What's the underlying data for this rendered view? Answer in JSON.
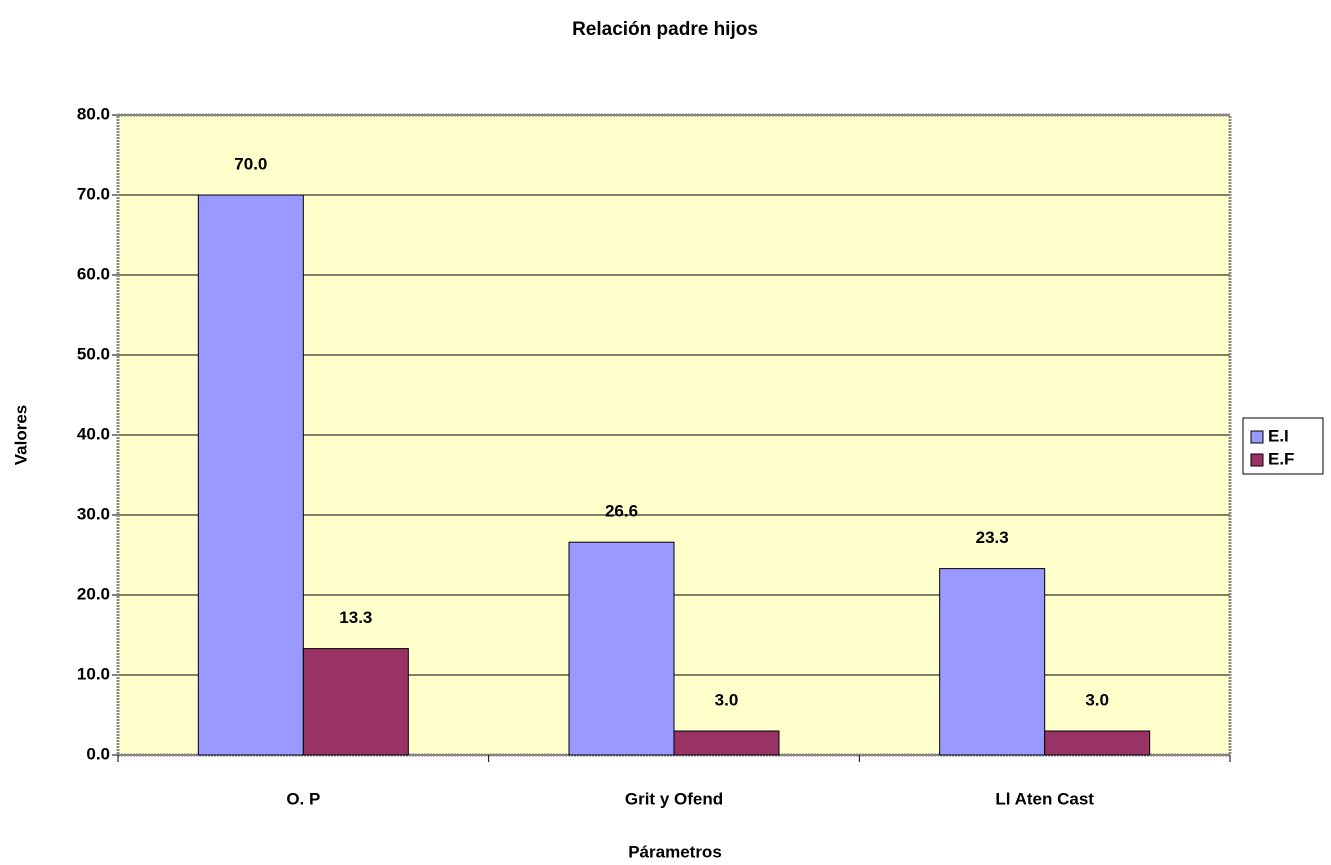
{
  "chart_data": {
    "type": "bar",
    "title": "Relación padre hijos",
    "x_label": "Párametros",
    "y_label": "Valores",
    "categories": [
      "O. P",
      "Grit y Ofend",
      "Ll Aten Cast"
    ],
    "series": [
      {
        "name": "E.I",
        "color": "#9999ff",
        "values": [
          70.0,
          26.6,
          23.3
        ],
        "value_labels": [
          "70.0",
          "26.6",
          "23.3"
        ]
      },
      {
        "name": "E.F",
        "color": "#993366",
        "values": [
          13.3,
          3.0,
          3.0
        ],
        "value_labels": [
          "13.3",
          "3.0",
          "3.0"
        ]
      }
    ],
    "ylim": [
      0,
      80
    ],
    "yticks": [
      {
        "value": 0,
        "label": "0.0"
      },
      {
        "value": 10,
        "label": "10.0"
      },
      {
        "value": 20,
        "label": "20.0"
      },
      {
        "value": 30,
        "label": "30.0"
      },
      {
        "value": 40,
        "label": "40.0"
      },
      {
        "value": 50,
        "label": "50.0"
      },
      {
        "value": 60,
        "label": "60.0"
      },
      {
        "value": 70,
        "label": "70.0"
      },
      {
        "value": 80,
        "label": "80.0"
      }
    ],
    "grid": true,
    "legend": "right",
    "plot_background": "#ffffcc"
  }
}
